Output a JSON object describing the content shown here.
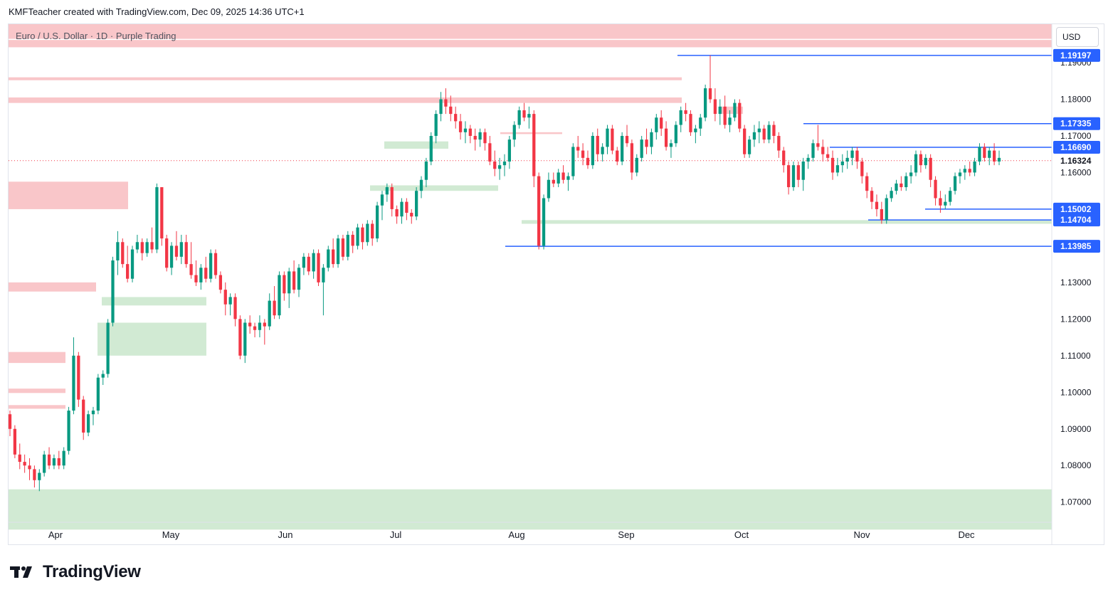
{
  "header": {
    "attribution": "KMFTeacher created with TradingView.com, Dec 09, 2025 14:36 UTC+1"
  },
  "symbol": {
    "line": "Euro / U.S. Dollar · 1D · Purple Trading"
  },
  "currency": {
    "label": "USD"
  },
  "brand": {
    "name": "TradingView"
  },
  "colors": {
    "up": "#089981",
    "down": "#f23645",
    "level_line": "#2962ff",
    "supply_zone": "#f9c6c9",
    "demand_zone": "#d1ead3",
    "grid_text": "#131722"
  },
  "chart_data": {
    "type": "candlestick",
    "title": "",
    "xlabel": "",
    "ylabel": "",
    "ylim": [
      1.0645,
      1.2005
    ],
    "y_ticks": [
      "1.07000",
      "1.08000",
      "1.09000",
      "1.10000",
      "1.11000",
      "1.12000",
      "1.13000",
      "1.16000",
      "1.17000",
      "1.18000",
      "1.19000"
    ],
    "x_ticks": [
      "Apr",
      "May",
      "Jun",
      "Jul",
      "Aug",
      "Sep",
      "Oct",
      "Nov",
      "Dec"
    ],
    "price_levels": [
      {
        "value": 1.19197,
        "label": "1.19197"
      },
      {
        "value": 1.17335,
        "label": "1.17335"
      },
      {
        "value": 1.1669,
        "label": "1.16690"
      },
      {
        "value": 1.15002,
        "label": "1.15002"
      },
      {
        "value": 1.14704,
        "label": "1.14704"
      },
      {
        "value": 1.13985,
        "label": "1.13985"
      }
    ],
    "last_price": {
      "value": 1.16324,
      "label": "1.16324"
    },
    "candles": [
      [
        1.094,
        1.095,
        1.088,
        1.09
      ],
      [
        1.09,
        1.091,
        1.082,
        1.083
      ],
      [
        1.083,
        1.086,
        1.079,
        1.081
      ],
      [
        1.081,
        1.083,
        1.078,
        1.08
      ],
      [
        1.08,
        1.082,
        1.076,
        1.079
      ],
      [
        1.079,
        1.08,
        1.074,
        1.076
      ],
      [
        1.076,
        1.079,
        1.073,
        1.078
      ],
      [
        1.078,
        1.084,
        1.077,
        1.083
      ],
      [
        1.083,
        1.085,
        1.079,
        1.08
      ],
      [
        1.08,
        1.083,
        1.079,
        1.082
      ],
      [
        1.082,
        1.084,
        1.079,
        1.08
      ],
      [
        1.08,
        1.085,
        1.079,
        1.084
      ],
      [
        1.084,
        1.096,
        1.083,
        1.095
      ],
      [
        1.095,
        1.115,
        1.094,
        1.11
      ],
      [
        1.11,
        1.111,
        1.096,
        1.098
      ],
      [
        1.098,
        1.099,
        1.087,
        1.089
      ],
      [
        1.089,
        1.095,
        1.088,
        1.094
      ],
      [
        1.094,
        1.096,
        1.091,
        1.095
      ],
      [
        1.095,
        1.105,
        1.094,
        1.104
      ],
      [
        1.104,
        1.106,
        1.102,
        1.105
      ],
      [
        1.105,
        1.12,
        1.104,
        1.119
      ],
      [
        1.119,
        1.137,
        1.118,
        1.136
      ],
      [
        1.136,
        1.144,
        1.132,
        1.141
      ],
      [
        1.141,
        1.142,
        1.134,
        1.135
      ],
      [
        1.135,
        1.14,
        1.13,
        1.131
      ],
      [
        1.131,
        1.14,
        1.13,
        1.139
      ],
      [
        1.139,
        1.143,
        1.138,
        1.141
      ],
      [
        1.141,
        1.142,
        1.136,
        1.138
      ],
      [
        1.138,
        1.142,
        1.137,
        1.141
      ],
      [
        1.141,
        1.145,
        1.138,
        1.139
      ],
      [
        1.139,
        1.157,
        1.138,
        1.156
      ],
      [
        1.156,
        1.155,
        1.14,
        1.142
      ],
      [
        1.142,
        1.143,
        1.133,
        1.134
      ],
      [
        1.134,
        1.141,
        1.132,
        1.14
      ],
      [
        1.14,
        1.144,
        1.136,
        1.137
      ],
      [
        1.137,
        1.143,
        1.135,
        1.141
      ],
      [
        1.141,
        1.143,
        1.134,
        1.135
      ],
      [
        1.135,
        1.141,
        1.131,
        1.132
      ],
      [
        1.132,
        1.136,
        1.129,
        1.13
      ],
      [
        1.13,
        1.135,
        1.128,
        1.134
      ],
      [
        1.134,
        1.137,
        1.13,
        1.131
      ],
      [
        1.131,
        1.139,
        1.13,
        1.138
      ],
      [
        1.138,
        1.139,
        1.131,
        1.132
      ],
      [
        1.132,
        1.133,
        1.127,
        1.128
      ],
      [
        1.128,
        1.13,
        1.121,
        1.124
      ],
      [
        1.124,
        1.127,
        1.121,
        1.126
      ],
      [
        1.126,
        1.127,
        1.118,
        1.12
      ],
      [
        1.12,
        1.121,
        1.109,
        1.11
      ],
      [
        1.11,
        1.12,
        1.108,
        1.119
      ],
      [
        1.119,
        1.121,
        1.116,
        1.118
      ],
      [
        1.118,
        1.119,
        1.115,
        1.117
      ],
      [
        1.117,
        1.121,
        1.115,
        1.119
      ],
      [
        1.119,
        1.12,
        1.113,
        1.118
      ],
      [
        1.118,
        1.127,
        1.117,
        1.125
      ],
      [
        1.125,
        1.129,
        1.12,
        1.121
      ],
      [
        1.121,
        1.133,
        1.12,
        1.132
      ],
      [
        1.132,
        1.133,
        1.125,
        1.127
      ],
      [
        1.127,
        1.134,
        1.123,
        1.133
      ],
      [
        1.133,
        1.136,
        1.127,
        1.128
      ],
      [
        1.128,
        1.135,
        1.126,
        1.134
      ],
      [
        1.134,
        1.138,
        1.132,
        1.137
      ],
      [
        1.137,
        1.138,
        1.132,
        1.133
      ],
      [
        1.133,
        1.139,
        1.131,
        1.138
      ],
      [
        1.138,
        1.139,
        1.129,
        1.13
      ],
      [
        1.13,
        1.135,
        1.121,
        1.134
      ],
      [
        1.134,
        1.14,
        1.133,
        1.139
      ],
      [
        1.139,
        1.142,
        1.134,
        1.135
      ],
      [
        1.135,
        1.143,
        1.134,
        1.142
      ],
      [
        1.142,
        1.143,
        1.136,
        1.137
      ],
      [
        1.137,
        1.144,
        1.136,
        1.143
      ],
      [
        1.143,
        1.144,
        1.138,
        1.14
      ],
      [
        1.14,
        1.146,
        1.139,
        1.145
      ],
      [
        1.145,
        1.146,
        1.139,
        1.141
      ],
      [
        1.141,
        1.147,
        1.14,
        1.146
      ],
      [
        1.146,
        1.147,
        1.14,
        1.142
      ],
      [
        1.142,
        1.152,
        1.141,
        1.151
      ],
      [
        1.151,
        1.155,
        1.147,
        1.154
      ],
      [
        1.154,
        1.157,
        1.152,
        1.156
      ],
      [
        1.156,
        1.157,
        1.148,
        1.15
      ],
      [
        1.15,
        1.151,
        1.146,
        1.148
      ],
      [
        1.148,
        1.153,
        1.146,
        1.152
      ],
      [
        1.152,
        1.153,
        1.147,
        1.149
      ],
      [
        1.149,
        1.15,
        1.146,
        1.148
      ],
      [
        1.148,
        1.156,
        1.147,
        1.155
      ],
      [
        1.155,
        1.159,
        1.153,
        1.158
      ],
      [
        1.158,
        1.164,
        1.156,
        1.163
      ],
      [
        1.163,
        1.171,
        1.162,
        1.17
      ],
      [
        1.17,
        1.177,
        1.168,
        1.176
      ],
      [
        1.176,
        1.182,
        1.174,
        1.18
      ],
      [
        1.18,
        1.183,
        1.176,
        1.178
      ],
      [
        1.178,
        1.181,
        1.174,
        1.176
      ],
      [
        1.176,
        1.178,
        1.172,
        1.174
      ],
      [
        1.174,
        1.176,
        1.169,
        1.171
      ],
      [
        1.171,
        1.174,
        1.168,
        1.172
      ],
      [
        1.172,
        1.173,
        1.168,
        1.17
      ],
      [
        1.17,
        1.172,
        1.166,
        1.169
      ],
      [
        1.169,
        1.172,
        1.167,
        1.171
      ],
      [
        1.171,
        1.172,
        1.166,
        1.168
      ],
      [
        1.168,
        1.17,
        1.162,
        1.163
      ],
      [
        1.163,
        1.166,
        1.159,
        1.161
      ],
      [
        1.161,
        1.164,
        1.158,
        1.162
      ],
      [
        1.162,
        1.165,
        1.159,
        1.163
      ],
      [
        1.163,
        1.17,
        1.161,
        1.169
      ],
      [
        1.169,
        1.174,
        1.167,
        1.173
      ],
      [
        1.173,
        1.178,
        1.172,
        1.177
      ],
      [
        1.177,
        1.179,
        1.174,
        1.175
      ],
      [
        1.175,
        1.178,
        1.172,
        1.176
      ],
      [
        1.176,
        1.177,
        1.156,
        1.159
      ],
      [
        1.159,
        1.16,
        1.139,
        1.14
      ],
      [
        1.14,
        1.154,
        1.139,
        1.153
      ],
      [
        1.153,
        1.16,
        1.152,
        1.158
      ],
      [
        1.158,
        1.16,
        1.156,
        1.157
      ],
      [
        1.157,
        1.161,
        1.156,
        1.16
      ],
      [
        1.16,
        1.162,
        1.157,
        1.158
      ],
      [
        1.158,
        1.16,
        1.155,
        1.159
      ],
      [
        1.159,
        1.168,
        1.158,
        1.167
      ],
      [
        1.167,
        1.17,
        1.164,
        1.166
      ],
      [
        1.166,
        1.168,
        1.162,
        1.164
      ],
      [
        1.164,
        1.166,
        1.161,
        1.162
      ],
      [
        1.162,
        1.171,
        1.161,
        1.17
      ],
      [
        1.17,
        1.172,
        1.163,
        1.165
      ],
      [
        1.165,
        1.168,
        1.163,
        1.167
      ],
      [
        1.167,
        1.173,
        1.165,
        1.172
      ],
      [
        1.172,
        1.173,
        1.165,
        1.166
      ],
      [
        1.166,
        1.167,
        1.162,
        1.163
      ],
      [
        1.163,
        1.171,
        1.162,
        1.17
      ],
      [
        1.17,
        1.173,
        1.167,
        1.168
      ],
      [
        1.168,
        1.169,
        1.158,
        1.16
      ],
      [
        1.16,
        1.165,
        1.159,
        1.164
      ],
      [
        1.164,
        1.17,
        1.163,
        1.169
      ],
      [
        1.169,
        1.172,
        1.165,
        1.167
      ],
      [
        1.167,
        1.172,
        1.165,
        1.171
      ],
      [
        1.171,
        1.176,
        1.169,
        1.175
      ],
      [
        1.175,
        1.177,
        1.17,
        1.172
      ],
      [
        1.172,
        1.174,
        1.166,
        1.167
      ],
      [
        1.167,
        1.169,
        1.164,
        1.168
      ],
      [
        1.168,
        1.174,
        1.167,
        1.173
      ],
      [
        1.173,
        1.178,
        1.171,
        1.177
      ],
      [
        1.177,
        1.179,
        1.174,
        1.176
      ],
      [
        1.176,
        1.177,
        1.17,
        1.171
      ],
      [
        1.171,
        1.173,
        1.168,
        1.172
      ],
      [
        1.172,
        1.176,
        1.17,
        1.175
      ],
      [
        1.175,
        1.184,
        1.174,
        1.183
      ],
      [
        1.183,
        1.192,
        1.179,
        1.18
      ],
      [
        1.18,
        1.183,
        1.174,
        1.176
      ],
      [
        1.176,
        1.18,
        1.173,
        1.178
      ],
      [
        1.178,
        1.181,
        1.172,
        1.173
      ],
      [
        1.173,
        1.177,
        1.171,
        1.175
      ],
      [
        1.175,
        1.18,
        1.174,
        1.179
      ],
      [
        1.179,
        1.18,
        1.171,
        1.172
      ],
      [
        1.172,
        1.173,
        1.164,
        1.165
      ],
      [
        1.165,
        1.17,
        1.164,
        1.169
      ],
      [
        1.169,
        1.173,
        1.167,
        1.171
      ],
      [
        1.171,
        1.174,
        1.168,
        1.172
      ],
      [
        1.172,
        1.173,
        1.168,
        1.169
      ],
      [
        1.169,
        1.174,
        1.168,
        1.173
      ],
      [
        1.173,
        1.174,
        1.168,
        1.17
      ],
      [
        1.17,
        1.171,
        1.164,
        1.166
      ],
      [
        1.166,
        1.167,
        1.16,
        1.162
      ],
      [
        1.162,
        1.163,
        1.154,
        1.156
      ],
      [
        1.156,
        1.163,
        1.155,
        1.162
      ],
      [
        1.162,
        1.163,
        1.156,
        1.158
      ],
      [
        1.158,
        1.164,
        1.155,
        1.163
      ],
      [
        1.163,
        1.165,
        1.161,
        1.164
      ],
      [
        1.164,
        1.169,
        1.163,
        1.168
      ],
      [
        1.168,
        1.173,
        1.166,
        1.167
      ],
      [
        1.167,
        1.169,
        1.163,
        1.165
      ],
      [
        1.165,
        1.167,
        1.163,
        1.164
      ],
      [
        1.164,
        1.166,
        1.158,
        1.16
      ],
      [
        1.16,
        1.164,
        1.159,
        1.162
      ],
      [
        1.162,
        1.165,
        1.16,
        1.163
      ],
      [
        1.163,
        1.166,
        1.161,
        1.164
      ],
      [
        1.164,
        1.167,
        1.162,
        1.166
      ],
      [
        1.166,
        1.167,
        1.161,
        1.163
      ],
      [
        1.163,
        1.164,
        1.157,
        1.159
      ],
      [
        1.159,
        1.16,
        1.153,
        1.155
      ],
      [
        1.155,
        1.156,
        1.15,
        1.152
      ],
      [
        1.152,
        1.154,
        1.148,
        1.15
      ],
      [
        1.15,
        1.152,
        1.146,
        1.147
      ],
      [
        1.147,
        1.154,
        1.146,
        1.153
      ],
      [
        1.153,
        1.156,
        1.152,
        1.155
      ],
      [
        1.155,
        1.158,
        1.154,
        1.157
      ],
      [
        1.157,
        1.159,
        1.155,
        1.156
      ],
      [
        1.156,
        1.16,
        1.155,
        1.159
      ],
      [
        1.159,
        1.162,
        1.157,
        1.16
      ],
      [
        1.16,
        1.166,
        1.159,
        1.165
      ],
      [
        1.165,
        1.166,
        1.16,
        1.162
      ],
      [
        1.162,
        1.165,
        1.161,
        1.164
      ],
      [
        1.164,
        1.165,
        1.156,
        1.158
      ],
      [
        1.158,
        1.159,
        1.151,
        1.153
      ],
      [
        1.153,
        1.155,
        1.149,
        1.151
      ],
      [
        1.151,
        1.154,
        1.15,
        1.152
      ],
      [
        1.152,
        1.156,
        1.151,
        1.155
      ],
      [
        1.155,
        1.16,
        1.154,
        1.159
      ],
      [
        1.159,
        1.161,
        1.157,
        1.16
      ],
      [
        1.16,
        1.162,
        1.158,
        1.161
      ],
      [
        1.161,
        1.163,
        1.159,
        1.16
      ],
      [
        1.16,
        1.164,
        1.159,
        1.163
      ],
      [
        1.163,
        1.168,
        1.162,
        1.167
      ],
      [
        1.167,
        1.168,
        1.163,
        1.164
      ],
      [
        1.164,
        1.167,
        1.162,
        1.166
      ],
      [
        1.166,
        1.168,
        1.162,
        1.163
      ],
      [
        1.163,
        1.166,
        1.162,
        1.164
      ]
    ]
  }
}
